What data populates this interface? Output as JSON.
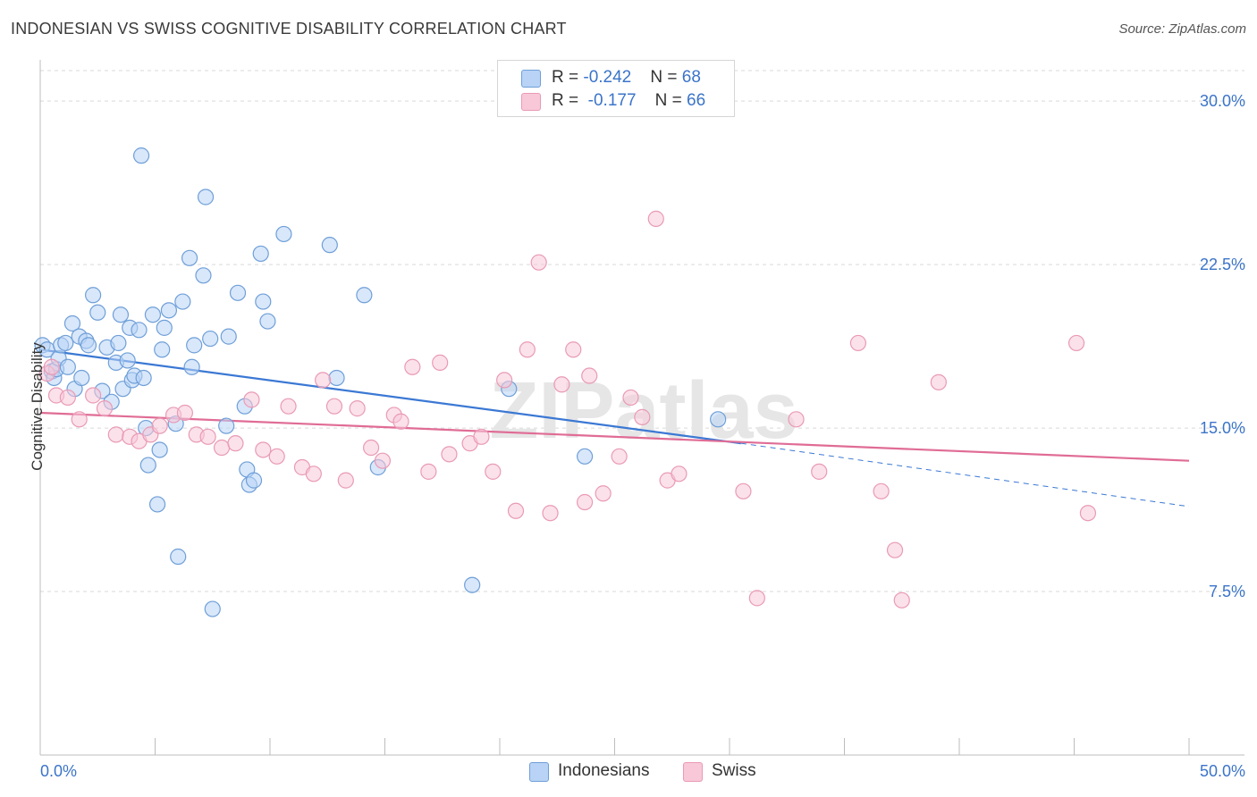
{
  "header": {
    "title": "INDONESIAN VS SWISS COGNITIVE DISABILITY CORRELATION CHART",
    "source": "Source: ZipAtlas.com"
  },
  "legend": {
    "indonesians": {
      "r_label": "R = ",
      "r_value": "-0.242",
      "n_label": "N = ",
      "n_value": "68"
    },
    "swiss": {
      "r_label": "R = ",
      "r_value": "-0.177",
      "n_label": "N = ",
      "n_value": "66"
    }
  },
  "bottom_legend": {
    "indonesians": "Indonesians",
    "swiss": "Swiss"
  },
  "watermark": "ZIPatlas",
  "colors": {
    "indonesians_fill": "#b8d3f5",
    "indonesians_stroke": "#6f9fd8",
    "indonesians_line": "#3b78d4",
    "swiss_fill": "#f8c8d8",
    "swiss_stroke": "#e99ab5",
    "swiss_line": "#e06c95",
    "tick_label": "#3b74c9",
    "grid": "#d9d9d9"
  },
  "chart_data": {
    "type": "scatter",
    "title": "INDONESIAN VS SWISS COGNITIVE DISABILITY CORRELATION CHART",
    "xlabel": "",
    "ylabel": "Cognitive Disability",
    "xlim": [
      0,
      50
    ],
    "ylim": [
      0,
      31.4
    ],
    "x_tick_labels": [
      "0.0%",
      "50.0%"
    ],
    "y_ticks": [
      7.5,
      15.0,
      22.5,
      30.0
    ],
    "y_tick_labels": [
      "7.5%",
      "15.0%",
      "22.5%",
      "30.0%"
    ],
    "grid": "horizontal dashed",
    "legend_position": "top-center",
    "series": [
      {
        "name": "Indonesians",
        "R": -0.242,
        "N": 68,
        "trend": {
          "x0": 0,
          "y0": 18.6,
          "x1": 30.5,
          "y1": 14.3,
          "dashed_to": [
            50,
            11.4
          ]
        },
        "points": [
          [
            0.1,
            18.8
          ],
          [
            0.3,
            18.6
          ],
          [
            0.5,
            17.6
          ],
          [
            0.6,
            17.3
          ],
          [
            0.7,
            17.7
          ],
          [
            0.8,
            18.2
          ],
          [
            0.9,
            18.8
          ],
          [
            1.1,
            18.9
          ],
          [
            1.2,
            17.8
          ],
          [
            1.4,
            19.8
          ],
          [
            1.5,
            16.8
          ],
          [
            1.7,
            19.2
          ],
          [
            1.8,
            17.3
          ],
          [
            2.0,
            19.0
          ],
          [
            2.1,
            18.8
          ],
          [
            2.3,
            21.1
          ],
          [
            2.5,
            20.3
          ],
          [
            2.7,
            16.7
          ],
          [
            2.9,
            18.7
          ],
          [
            3.1,
            16.2
          ],
          [
            3.3,
            18.0
          ],
          [
            3.4,
            18.9
          ],
          [
            3.5,
            20.2
          ],
          [
            3.6,
            16.8
          ],
          [
            3.8,
            18.1
          ],
          [
            3.9,
            19.6
          ],
          [
            4.0,
            17.2
          ],
          [
            4.1,
            17.4
          ],
          [
            4.3,
            19.5
          ],
          [
            4.4,
            27.5
          ],
          [
            4.5,
            17.3
          ],
          [
            4.6,
            15.0
          ],
          [
            4.7,
            13.3
          ],
          [
            4.9,
            20.2
          ],
          [
            5.1,
            11.5
          ],
          [
            5.2,
            14.0
          ],
          [
            5.3,
            18.6
          ],
          [
            5.4,
            19.6
          ],
          [
            5.6,
            20.4
          ],
          [
            5.9,
            15.2
          ],
          [
            6.0,
            9.1
          ],
          [
            6.2,
            20.8
          ],
          [
            6.5,
            22.8
          ],
          [
            6.6,
            17.8
          ],
          [
            6.7,
            18.8
          ],
          [
            7.1,
            22.0
          ],
          [
            7.2,
            25.6
          ],
          [
            7.4,
            19.1
          ],
          [
            7.5,
            6.7
          ],
          [
            8.1,
            15.1
          ],
          [
            8.2,
            19.2
          ],
          [
            8.6,
            21.2
          ],
          [
            8.9,
            16.0
          ],
          [
            9.0,
            13.1
          ],
          [
            9.1,
            12.4
          ],
          [
            9.3,
            12.6
          ],
          [
            9.6,
            23.0
          ],
          [
            9.7,
            20.8
          ],
          [
            9.9,
            19.9
          ],
          [
            10.6,
            23.9
          ],
          [
            12.6,
            23.4
          ],
          [
            12.9,
            17.3
          ],
          [
            14.1,
            21.1
          ],
          [
            14.7,
            13.2
          ],
          [
            18.8,
            7.8
          ],
          [
            20.4,
            16.8
          ],
          [
            23.7,
            13.7
          ],
          [
            29.5,
            15.4
          ]
        ]
      },
      {
        "name": "Swiss",
        "R": -0.177,
        "N": 66,
        "trend": {
          "x0": 0,
          "y0": 15.7,
          "x1": 50,
          "y1": 13.5
        },
        "points": [
          [
            0.3,
            17.5
          ],
          [
            0.5,
            17.8
          ],
          [
            0.7,
            16.5
          ],
          [
            1.2,
            16.4
          ],
          [
            1.7,
            15.4
          ],
          [
            2.3,
            16.5
          ],
          [
            2.8,
            15.9
          ],
          [
            3.3,
            14.7
          ],
          [
            3.9,
            14.6
          ],
          [
            4.3,
            14.4
          ],
          [
            4.8,
            14.7
          ],
          [
            5.2,
            15.1
          ],
          [
            5.8,
            15.6
          ],
          [
            6.3,
            15.7
          ],
          [
            6.8,
            14.7
          ],
          [
            7.3,
            14.6
          ],
          [
            7.9,
            14.1
          ],
          [
            8.5,
            14.3
          ],
          [
            9.2,
            16.3
          ],
          [
            9.7,
            14.0
          ],
          [
            10.3,
            13.7
          ],
          [
            10.8,
            16.0
          ],
          [
            11.4,
            13.2
          ],
          [
            11.9,
            12.9
          ],
          [
            12.3,
            17.2
          ],
          [
            12.8,
            16.0
          ],
          [
            13.3,
            12.6
          ],
          [
            13.8,
            15.9
          ],
          [
            14.4,
            14.1
          ],
          [
            14.9,
            13.5
          ],
          [
            15.4,
            15.6
          ],
          [
            15.7,
            15.3
          ],
          [
            16.2,
            17.8
          ],
          [
            16.9,
            13.0
          ],
          [
            17.4,
            18.0
          ],
          [
            17.8,
            13.8
          ],
          [
            18.7,
            14.3
          ],
          [
            19.2,
            14.6
          ],
          [
            19.7,
            13.0
          ],
          [
            20.2,
            17.2
          ],
          [
            20.7,
            11.2
          ],
          [
            21.2,
            18.6
          ],
          [
            21.7,
            22.6
          ],
          [
            22.2,
            11.1
          ],
          [
            22.7,
            17.0
          ],
          [
            23.2,
            18.6
          ],
          [
            23.7,
            11.6
          ],
          [
            23.9,
            17.4
          ],
          [
            24.5,
            12.0
          ],
          [
            25.2,
            13.7
          ],
          [
            25.7,
            16.4
          ],
          [
            26.2,
            15.5
          ],
          [
            26.8,
            24.6
          ],
          [
            27.3,
            12.6
          ],
          [
            27.8,
            12.9
          ],
          [
            30.6,
            12.1
          ],
          [
            31.2,
            7.2
          ],
          [
            32.9,
            15.4
          ],
          [
            33.9,
            13.0
          ],
          [
            35.6,
            18.9
          ],
          [
            36.6,
            12.1
          ],
          [
            37.2,
            9.4
          ],
          [
            37.5,
            7.1
          ],
          [
            39.1,
            17.1
          ],
          [
            45.1,
            18.9
          ],
          [
            45.6,
            11.1
          ]
        ]
      }
    ]
  }
}
